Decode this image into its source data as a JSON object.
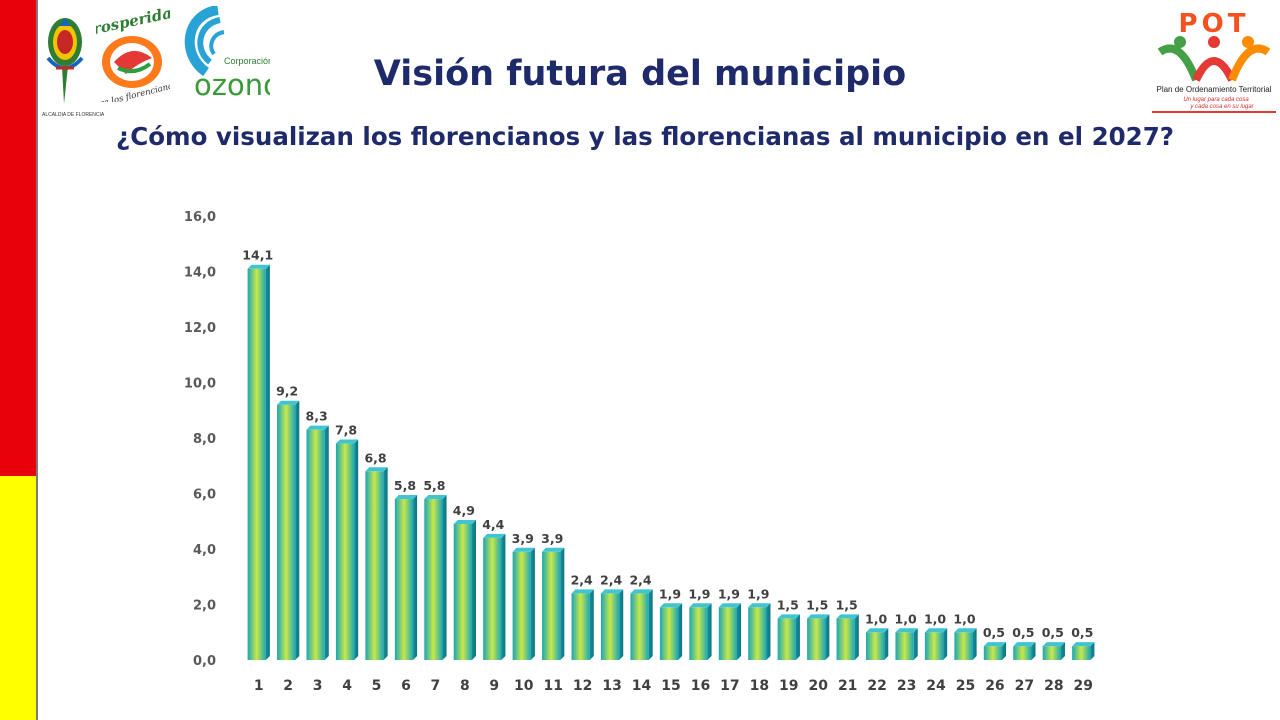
{
  "header": {
    "title": "Visión futura del municipio",
    "subtitle": "¿Cómo visualizan los florencianos y las florencianas al municipio en el 2027?"
  },
  "side_bar": {
    "top_color": "#e8000b",
    "bottom_color": "#ffff00"
  },
  "logos": {
    "alcaldia": {
      "caption": "ALCALDIA DE FLORENCIA"
    },
    "prosperidad": {
      "word1": "Prosperidad",
      "word2": "para los florencianos"
    },
    "ozono": {
      "small": "Corporación",
      "big": "ozono"
    },
    "pot": {
      "acronym": "POT",
      "name": "Plan de Ordenamiento Territorial",
      "tagline1": "Un lugar para cada cosa",
      "tagline2": "y cada cosa en su lugar"
    }
  },
  "colors": {
    "title": "#1f2a6b",
    "bar_center": "#c8e84a",
    "bar_edge": "#1aa7b5",
    "bar_top": "#41c4d2"
  },
  "chart_data": {
    "type": "bar",
    "categories": [
      "1",
      "2",
      "3",
      "4",
      "5",
      "6",
      "7",
      "8",
      "9",
      "10",
      "11",
      "12",
      "13",
      "14",
      "15",
      "16",
      "17",
      "18",
      "19",
      "20",
      "21",
      "22",
      "23",
      "24",
      "25",
      "26",
      "27",
      "28",
      "29"
    ],
    "values": [
      14.1,
      9.2,
      8.3,
      7.8,
      6.8,
      5.8,
      5.8,
      4.9,
      4.4,
      3.9,
      3.9,
      2.4,
      2.4,
      2.4,
      1.9,
      1.9,
      1.9,
      1.9,
      1.5,
      1.5,
      1.5,
      1.0,
      1.0,
      1.0,
      1.0,
      0.5,
      0.5,
      0.5,
      0.5
    ],
    "data_labels": [
      "14,1",
      "9,2",
      "8,3",
      "7,8",
      "6,8",
      "5,8",
      "5,8",
      "4,9",
      "4,4",
      "3,9",
      "3,9",
      "2,4",
      "2,4",
      "2,4",
      "1,9",
      "1,9",
      "1,9",
      "1,9",
      "1,5",
      "1,5",
      "1,5",
      "1,0",
      "1,0",
      "1,0",
      "1,0",
      "0,5",
      "0,5",
      "0,5",
      "0,5"
    ],
    "yticks": [
      "0,0",
      "2,0",
      "4,0",
      "6,0",
      "8,0",
      "10,0",
      "12,0",
      "14,0",
      "16,0"
    ],
    "ylim": [
      0,
      16
    ],
    "title": "",
    "xlabel": "",
    "ylabel": "",
    "grid": false,
    "legend": "none"
  }
}
